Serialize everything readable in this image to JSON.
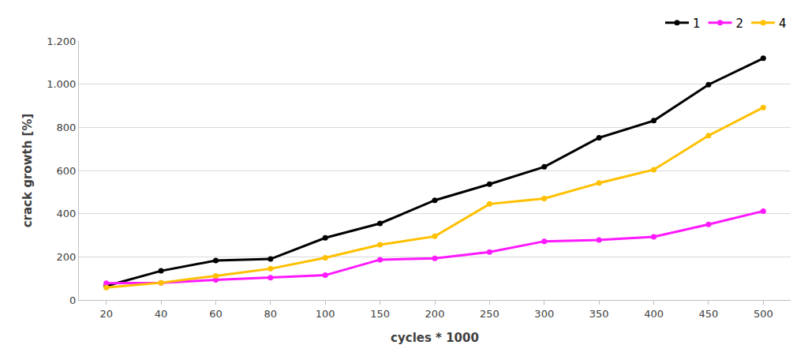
{
  "chart_data": {
    "type": "line",
    "x_label": "cycles * 1000",
    "y_label": "crack growth [%]",
    "categories": [
      "20",
      "40",
      "60",
      "80",
      "100",
      "150",
      "200",
      "250",
      "300",
      "350",
      "400",
      "450",
      "500"
    ],
    "series": [
      {
        "name": "1",
        "color": "#000000",
        "values": [
          65,
          135,
          183,
          190,
          288,
          355,
          462,
          537,
          617,
          752,
          831,
          998,
          1120
        ]
      },
      {
        "name": "2",
        "color": "#ff19ff",
        "values": [
          78,
          80,
          93,
          103,
          115,
          187,
          193,
          222,
          272,
          278,
          293,
          350,
          412
        ]
      },
      {
        "name": "4",
        "color": "#ffc000",
        "values": [
          58,
          80,
          112,
          145,
          196,
          256,
          295,
          445,
          470,
          542,
          604,
          762,
          892
        ]
      }
    ],
    "ylim": [
      0,
      1200
    ],
    "yticks": [
      0,
      200,
      400,
      600,
      800,
      {
        "value": 1000,
        "label": "1.000"
      },
      {
        "value": 1200,
        "label": "1.200"
      }
    ],
    "grid": true,
    "legend": "top right",
    "marker": "circle"
  }
}
